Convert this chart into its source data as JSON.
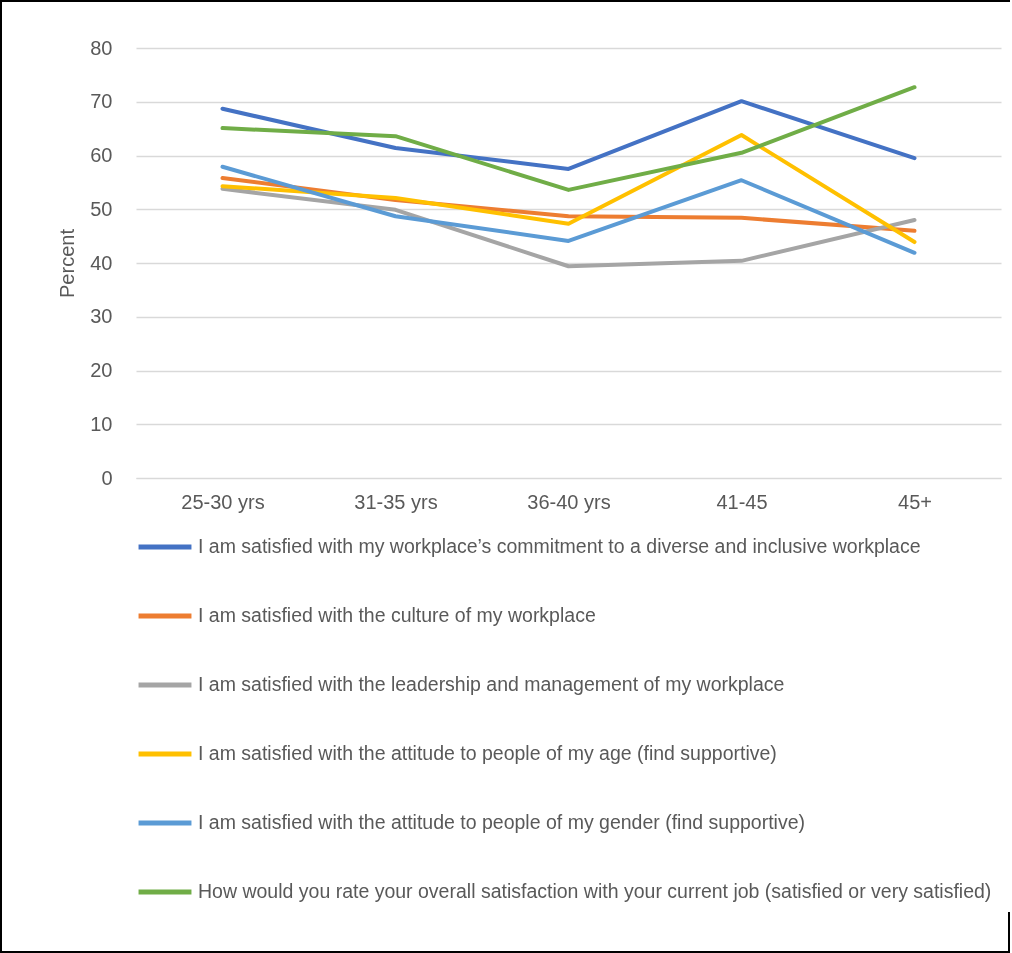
{
  "chart_data": {
    "type": "line",
    "ylabel": "Percent",
    "categories": [
      "25-30 yrs",
      "31-35 yrs",
      "36-40 yrs",
      "41-45",
      "45+"
    ],
    "ylim": [
      0,
      80
    ],
    "yticks": [
      0,
      10,
      20,
      30,
      40,
      50,
      60,
      70,
      80
    ],
    "grid": "y",
    "legend": "bottom",
    "marker": "none",
    "line_style": "solid",
    "series": [
      {
        "name": "I am satisfied with my workplace’s commitment to a diverse and inclusive workplace",
        "color": "#4472c4",
        "values": [
          68.7,
          61.4,
          57.5,
          70.1,
          59.5
        ]
      },
      {
        "name": "I am satisfied with the culture of my workplace",
        "color": "#ed7d31",
        "values": [
          55.8,
          51.7,
          48.7,
          48.4,
          46.0
        ]
      },
      {
        "name": "I am satisfied with the leadership and management of my workplace",
        "color": "#a5a5a5",
        "values": [
          53.8,
          49.9,
          39.4,
          40.4,
          48.0
        ]
      },
      {
        "name": "I am satisfied with the attitude to people of my age (find supportive)",
        "color": "#ffc000",
        "values": [
          54.3,
          52.1,
          47.3,
          63.8,
          43.9
        ]
      },
      {
        "name": "I am satisfied with the attitude to people of my gender (find supportive)",
        "color": "#5b9bd5",
        "values": [
          57.9,
          48.7,
          44.1,
          55.4,
          41.9
        ]
      },
      {
        "name": "How would you rate your overall satisfaction with your current job (satisfied or very satisfied)",
        "color": "#70ad47",
        "values": [
          65.1,
          63.6,
          53.6,
          60.5,
          72.7
        ]
      }
    ]
  }
}
